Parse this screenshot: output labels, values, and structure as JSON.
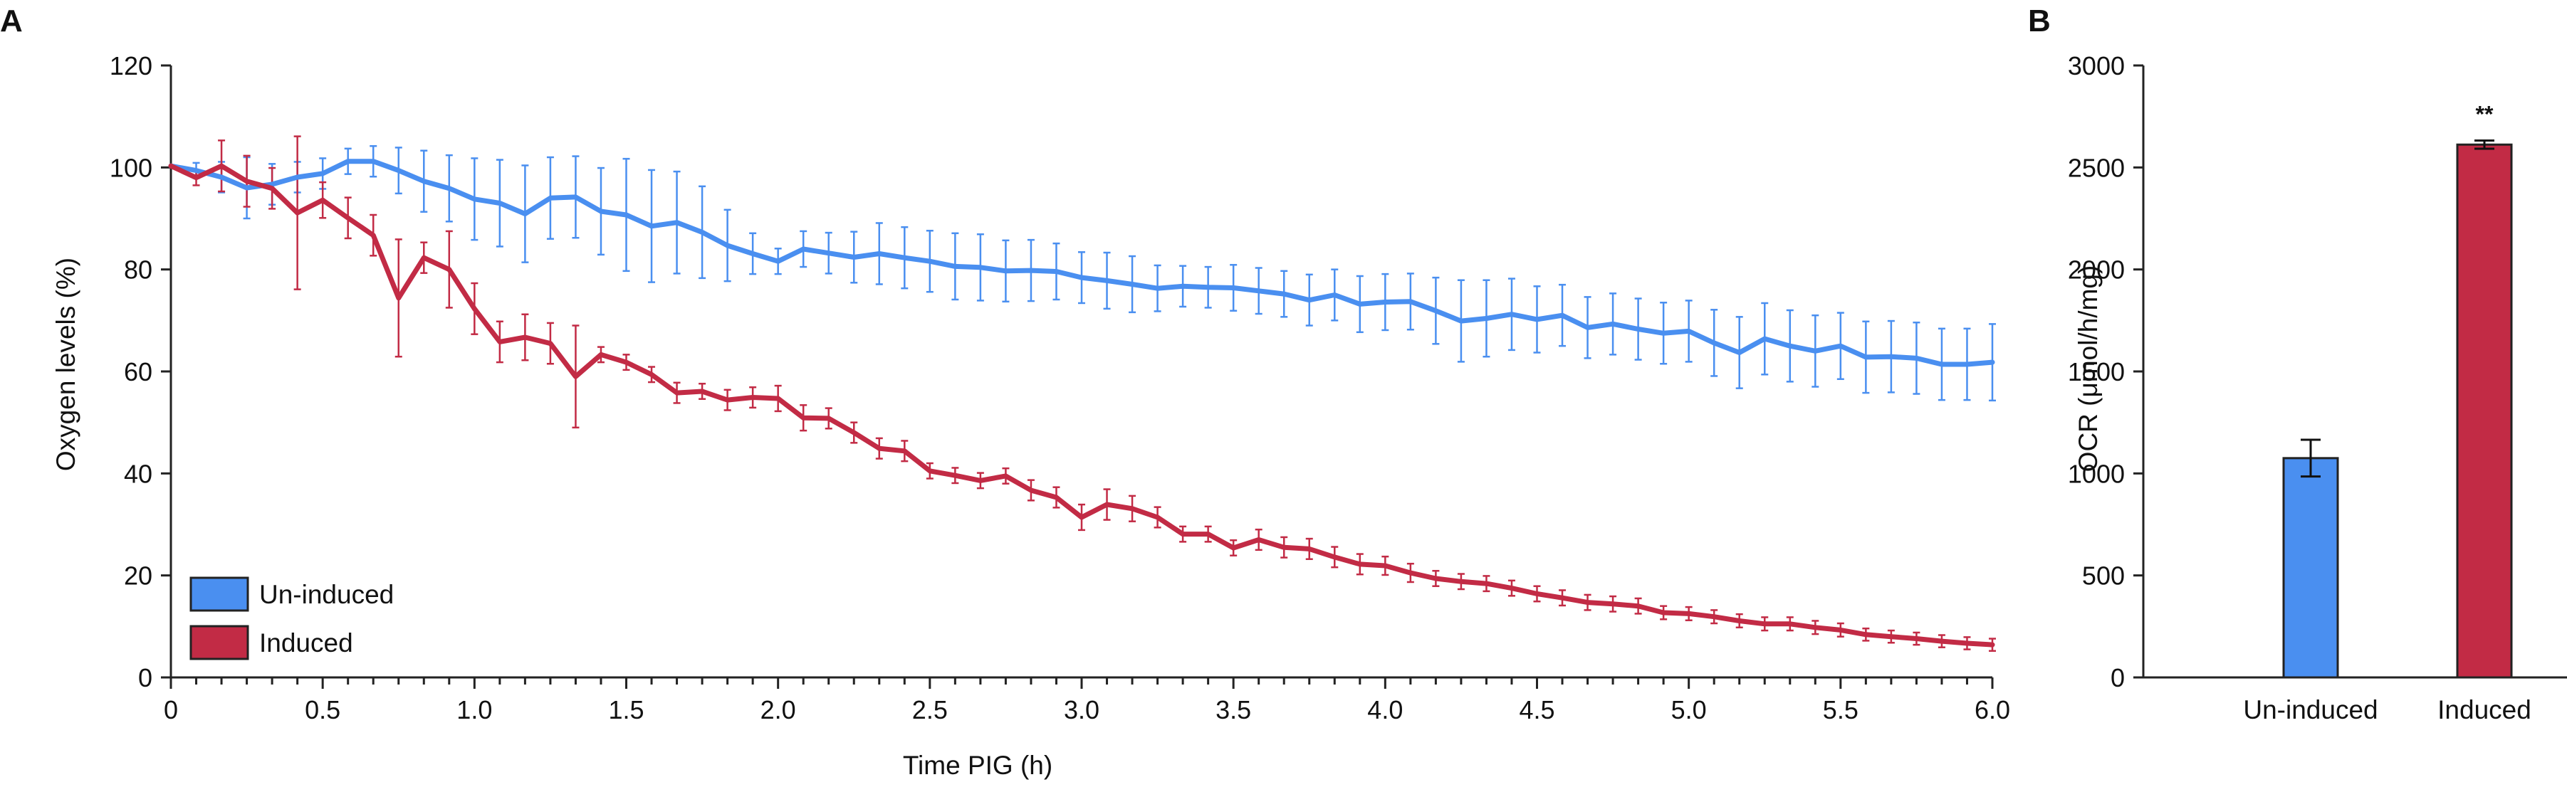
{
  "panel_labels": {
    "a": "A",
    "b": "B"
  },
  "colors": {
    "uninduced": "#4a8ff0",
    "induced": "#c22b45",
    "axis": "#222222"
  },
  "chart_data": [
    {
      "type": "line",
      "title": "",
      "xlabel": "Time PIG (h)",
      "ylabel": "Oxygen levels (%)",
      "xlim": [
        0,
        6.0
      ],
      "ylim": [
        0,
        120
      ],
      "xticks": [
        "0",
        "0.5",
        "1.0",
        "1.5",
        "2.0",
        "2.5",
        "3.0",
        "3.5",
        "4.0",
        "4.5",
        "5.0",
        "5.5",
        "6.0"
      ],
      "yticks": [
        "0",
        "20",
        "40",
        "60",
        "80",
        "100",
        "120"
      ],
      "legend": [
        "Un-induced",
        "Induced"
      ],
      "legend_position": "bottom-left",
      "x_step_h": 0.0833,
      "series": [
        {
          "name": "Un-induced",
          "color": "#4a8ff0",
          "values": [
            100.3,
            99.4,
            98.1,
            96.0,
            96.7,
            98.1,
            98.8,
            101.2,
            101.2,
            99.4,
            97.3,
            95.9,
            93.8,
            93.0,
            90.9,
            94.0,
            94.2,
            91.4,
            90.7,
            88.5,
            89.2,
            87.3,
            84.7,
            83.1,
            81.6,
            84.0,
            83.2,
            82.4,
            83.1,
            82.3,
            81.6,
            80.6,
            80.4,
            79.7,
            79.8,
            79.6,
            78.4,
            77.8,
            77.1,
            76.3,
            76.7,
            76.5,
            76.4,
            75.8,
            75.2,
            74.0,
            75.0,
            73.2,
            73.6,
            73.7,
            71.9,
            69.9,
            70.4,
            71.2,
            70.2,
            71.0,
            68.6,
            69.3,
            68.3,
            67.5,
            67.9,
            65.6,
            63.7,
            66.4,
            65.0,
            64.0,
            65.0,
            62.8,
            62.9,
            62.6,
            61.4,
            61.4,
            61.8
          ],
          "errors": [
            0,
            1.5,
            3,
            6,
            4,
            3,
            3,
            2.5,
            3,
            4.5,
            6,
            6.5,
            8,
            8.5,
            9.5,
            8,
            8,
            8.5,
            11,
            11,
            10,
            9,
            7,
            4,
            2.5,
            3.5,
            4,
            5,
            6,
            6,
            6,
            6.5,
            6.5,
            6,
            6,
            5.5,
            5,
            5.5,
            5.5,
            4.5,
            4,
            4,
            4.5,
            4.5,
            4.5,
            5,
            5,
            5.5,
            5.5,
            5.5,
            6.5,
            8,
            7.5,
            7,
            6.5,
            6,
            6,
            6,
            6,
            6,
            6,
            6.5,
            7,
            7,
            7,
            7,
            6.5,
            7,
            7,
            7,
            7,
            7,
            7.5
          ]
        },
        {
          "name": "Induced",
          "color": "#c22b45",
          "values": [
            100.3,
            98.0,
            100.3,
            97.3,
            95.9,
            91.1,
            93.6,
            90.1,
            86.7,
            74.4,
            82.3,
            80.0,
            72.3,
            65.8,
            66.7,
            65.5,
            59.0,
            63.3,
            61.8,
            59.4,
            55.8,
            56.1,
            54.4,
            54.9,
            54.7,
            50.9,
            50.8,
            48.0,
            44.9,
            44.4,
            40.5,
            39.6,
            38.6,
            39.5,
            36.7,
            35.3,
            31.4,
            33.9,
            33.1,
            31.4,
            28.1,
            28.1,
            25.4,
            27.0,
            25.5,
            25.2,
            23.6,
            22.2,
            21.9,
            20.5,
            19.4,
            18.8,
            18.4,
            17.5,
            16.4,
            15.6,
            14.7,
            14.4,
            14.0,
            12.7,
            12.5,
            11.9,
            11.1,
            10.5,
            10.5,
            9.8,
            9.3,
            8.4,
            8.0,
            7.6,
            7.1,
            6.7,
            6.4
          ],
          "errors": [
            0,
            1.5,
            5,
            5,
            4,
            15,
            3.5,
            4,
            4,
            11.5,
            3,
            7.5,
            5,
            4,
            4.5,
            4,
            10,
            1.5,
            1.5,
            1.5,
            2,
            1.5,
            2,
            2,
            2.5,
            2.5,
            2,
            2,
            2,
            2,
            1.5,
            1.5,
            1.5,
            1.5,
            2,
            2,
            2.5,
            3,
            2.5,
            2,
            1.5,
            1.5,
            1.5,
            2,
            2,
            2,
            2,
            2,
            1.8,
            1.8,
            1.5,
            1.5,
            1.5,
            1.5,
            1.5,
            1.5,
            1.5,
            1.5,
            1.5,
            1.3,
            1.3,
            1.3,
            1.3,
            1.3,
            1.3,
            1.3,
            1.3,
            1.2,
            1.2,
            1.2,
            1.2,
            1.2,
            1.2
          ]
        }
      ]
    },
    {
      "type": "bar",
      "title": "",
      "xlabel": "",
      "ylabel": "OCR (μmol/h/mg)",
      "ylim": [
        0,
        3000
      ],
      "yticks": [
        "0",
        "500",
        "1000",
        "1500",
        "2000",
        "2500",
        "3000"
      ],
      "categories": [
        "Un-induced",
        "Induced"
      ],
      "values": [
        1075,
        2612
      ],
      "errors": [
        90,
        20
      ],
      "colors": [
        "#4a8ff0",
        "#c22b45"
      ],
      "annotations": [
        {
          "category": "Induced",
          "text": "**"
        }
      ]
    }
  ]
}
